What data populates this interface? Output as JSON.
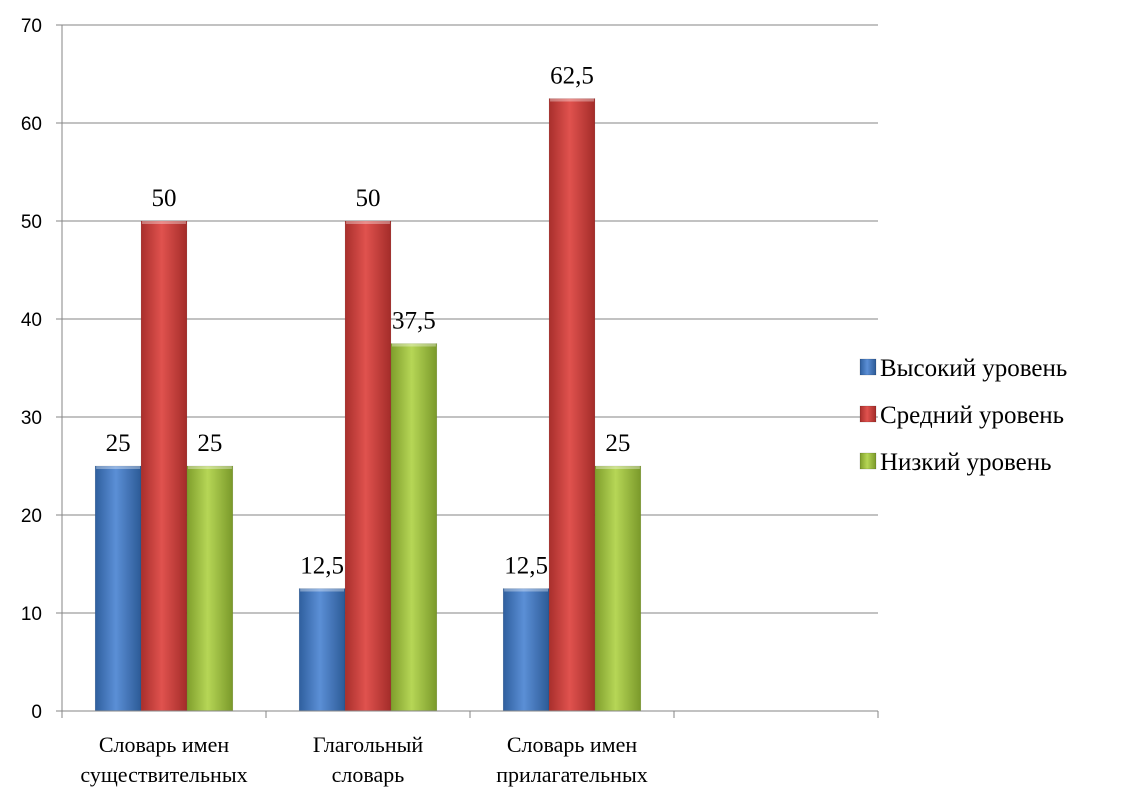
{
  "chart_data": {
    "type": "bar",
    "categories": [
      [
        "Словарь имен",
        "существительных"
      ],
      [
        "Глагольный",
        "словарь"
      ],
      [
        "Словарь имен",
        "прилагательных"
      ],
      [
        "",
        ""
      ]
    ],
    "series": [
      {
        "name": "Высокий уровень",
        "values": [
          25,
          12.5,
          12.5,
          null
        ],
        "labels": [
          "25",
          "12,5",
          "12,5",
          ""
        ],
        "color": "#3f73b8"
      },
      {
        "name": "Средний уровень",
        "values": [
          50,
          50,
          62.5,
          null
        ],
        "labels": [
          "50",
          "50",
          "62,5",
          ""
        ],
        "color": "#c43c39"
      },
      {
        "name": "Низкий уровень",
        "values": [
          25,
          37.5,
          25,
          null
        ],
        "labels": [
          "25",
          "37,5",
          "25",
          ""
        ],
        "color": "#98b83c"
      }
    ],
    "ylim": [
      0,
      70
    ],
    "yticks": [
      0,
      10,
      20,
      30,
      40,
      50,
      60,
      70
    ],
    "grid": true,
    "legend": "right",
    "title": "",
    "xlabel": "",
    "ylabel": ""
  }
}
